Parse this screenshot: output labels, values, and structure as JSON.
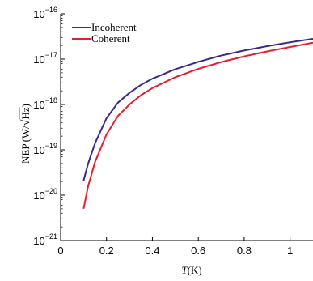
{
  "chart_data": {
    "type": "line",
    "title": "",
    "xlabel": {
      "italic": "T",
      "rest": "(K)"
    },
    "ylabel": {
      "prefix": "NEP",
      "num": "(W/",
      "sqrt": "Hz",
      "close": ")"
    },
    "x_scale": "linear",
    "y_scale": "log",
    "xlim": [
      0,
      1.1
    ],
    "ylim": [
      1e-21,
      1e-16
    ],
    "x_ticks": [
      0,
      0.2,
      0.4,
      0.6,
      0.8,
      1
    ],
    "x_tick_labels": [
      "0",
      "0.2",
      "0.4",
      "0.6",
      "0.8",
      "1"
    ],
    "y_ticks": [
      {
        "value": 1e-21,
        "base": "10",
        "exp": "−21"
      },
      {
        "value": 1e-20,
        "base": "10",
        "exp": "−20"
      },
      {
        "value": 1e-19,
        "base": "10",
        "exp": "−19"
      },
      {
        "value": 1e-18,
        "base": "10",
        "exp": "−18"
      },
      {
        "value": 1e-17,
        "base": "10",
        "exp": "−17"
      },
      {
        "value": 1e-16,
        "base": "10",
        "exp": "−16"
      }
    ],
    "grid": false,
    "legend_position": "top-left",
    "series": [
      {
        "name": "Incoherent",
        "color": "#3b2a86",
        "x": [
          0.1,
          0.12,
          0.15,
          0.2,
          0.25,
          0.3,
          0.35,
          0.4,
          0.5,
          0.6,
          0.7,
          0.8,
          0.9,
          1.0,
          1.1
        ],
        "y": [
          2.1e-20,
          5e-20,
          1.4e-19,
          5e-19,
          1.1e-18,
          1.8e-18,
          2.7e-18,
          3.7e-18,
          6e-18,
          8.7e-18,
          1.2e-17,
          1.55e-17,
          1.93e-17,
          2.35e-17,
          2.8e-17
        ]
      },
      {
        "name": "Coherent",
        "color": "#e21f2f",
        "x": [
          0.1,
          0.12,
          0.15,
          0.2,
          0.25,
          0.3,
          0.35,
          0.4,
          0.5,
          0.6,
          0.7,
          0.8,
          0.9,
          1.0,
          1.1
        ],
        "y": [
          5e-21,
          1.6e-20,
          5.4e-20,
          2.2e-19,
          5.6e-19,
          1e-18,
          1.6e-18,
          2.3e-18,
          4e-18,
          6.1e-18,
          8.6e-18,
          1.15e-17,
          1.48e-17,
          1.85e-17,
          2.3e-17
        ]
      }
    ]
  }
}
